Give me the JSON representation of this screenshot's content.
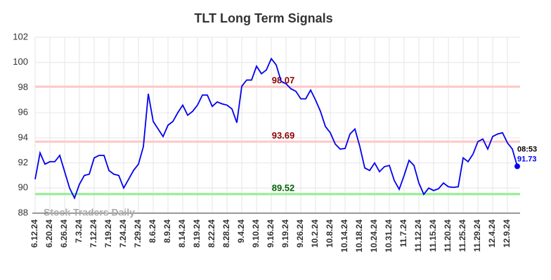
{
  "chart_data": {
    "type": "line",
    "title": "TLT Long Term Signals",
    "categories": [
      "6.12.24",
      null,
      null,
      "6.20.24",
      null,
      null,
      "6.26.24",
      null,
      null,
      "7.3.24",
      null,
      null,
      "7.12.24",
      null,
      null,
      "7.19.24",
      null,
      null,
      "7.24.24",
      null,
      null,
      "7.29.24",
      null,
      null,
      "8.6.24",
      null,
      null,
      "8.9.24",
      null,
      null,
      "8.14.24",
      null,
      null,
      "8.19.24",
      null,
      null,
      "8.22.24",
      null,
      null,
      "8.28.24",
      null,
      null,
      "9.4.24",
      null,
      null,
      "9.10.24",
      null,
      null,
      "9.16.24",
      null,
      null,
      "9.19.24",
      null,
      null,
      "9.26.24",
      null,
      null,
      "10.2.24",
      null,
      null,
      "10.8.24",
      null,
      null,
      "10.14.24",
      null,
      null,
      "10.18.24",
      null,
      null,
      "10.24.24",
      null,
      null,
      "10.31.24",
      null,
      null,
      "11.7.24",
      null,
      null,
      "11.12.24",
      null,
      null,
      "11.15.24",
      null,
      null,
      "11.20.24",
      null,
      null,
      "11.25.24",
      null,
      null,
      "11.29.24",
      null,
      null,
      "12.4.24",
      null,
      null,
      "12.9.24",
      null,
      null
    ],
    "values": [
      90.7,
      92.8,
      91.9,
      92.1,
      92.1,
      92.6,
      91.3,
      90.0,
      89.2,
      90.3,
      91.0,
      91.1,
      92.4,
      92.6,
      92.6,
      91.4,
      91.1,
      91.0,
      90.0,
      90.7,
      91.4,
      91.9,
      93.3,
      97.5,
      95.3,
      94.7,
      94.1,
      95.0,
      95.3,
      96.0,
      96.6,
      95.8,
      96.1,
      96.6,
      97.4,
      97.4,
      96.5,
      96.85,
      96.7,
      96.6,
      96.3,
      95.2,
      98.1,
      98.6,
      98.6,
      99.7,
      99.1,
      99.4,
      100.3,
      99.8,
      98.5,
      98.3,
      97.9,
      97.7,
      97.1,
      97.1,
      97.8,
      97.0,
      96.1,
      94.9,
      94.4,
      93.5,
      93.1,
      93.15,
      94.3,
      94.7,
      93.3,
      91.6,
      91.4,
      92.0,
      91.3,
      91.7,
      91.8,
      90.6,
      89.9,
      91.0,
      92.2,
      91.8,
      90.4,
      89.5,
      90.0,
      89.8,
      89.95,
      90.4,
      90.1,
      90.05,
      90.1,
      92.4,
      92.1,
      92.7,
      93.7,
      93.9,
      93.1,
      94.1,
      94.3,
      94.4,
      93.6,
      93.1,
      91.73
    ],
    "color": "#0000ee",
    "ylim": [
      88,
      102
    ],
    "yticks": [
      88,
      90,
      92,
      94,
      96,
      98,
      100,
      102
    ],
    "grid": true,
    "levels": [
      {
        "value": 98.07,
        "line_color": "#ffc8c8",
        "label_color": "#8b0000"
      },
      {
        "value": 93.69,
        "line_color": "#ffc8c8",
        "label_color": "#8b0000"
      },
      {
        "value": 89.52,
        "line_color": "#90ee90",
        "label_color": "#006400"
      }
    ],
    "last_time": "08:53",
    "watermark": "Stock Traders Daily"
  }
}
